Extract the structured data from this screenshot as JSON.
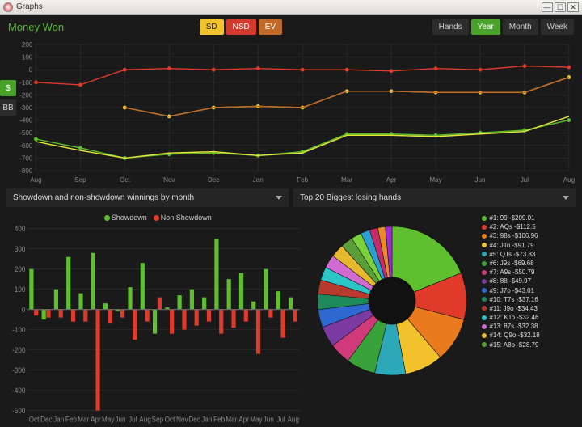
{
  "window": {
    "title": "Graphs"
  },
  "header": {
    "title": "Money Won",
    "series_buttons": [
      {
        "label": "SD",
        "bg": "#f2c22c",
        "fg": "#222"
      },
      {
        "label": "NSD",
        "bg": "#d13a2c",
        "fg": "#fff"
      },
      {
        "label": "EV",
        "bg": "#c06a2a",
        "fg": "#fff"
      }
    ],
    "range_buttons": [
      {
        "label": "Hands",
        "active": false
      },
      {
        "label": "Year",
        "active": true
      },
      {
        "label": "Month",
        "active": false
      },
      {
        "label": "Week",
        "active": false
      }
    ]
  },
  "side_tabs": [
    {
      "label": "$",
      "active": true
    },
    {
      "label": "BB",
      "active": false
    }
  ],
  "main_chart": {
    "type": "line",
    "background_color": "#1a1a1a",
    "grid_color": "#333333",
    "label_font_size": 8,
    "x_labels": [
      "Aug",
      "Sep",
      "Oct",
      "Nov",
      "Dec",
      "Jan",
      "Feb",
      "Mar",
      "Apr",
      "May",
      "Jun",
      "Jul",
      "Aug"
    ],
    "ylim": [
      -800,
      200
    ],
    "ytick_step": 100,
    "series": [
      {
        "name": "SD",
        "color": "#f2c22c",
        "marker": true,
        "values": [
          null,
          null,
          -300,
          -370,
          -300,
          -290,
          -300,
          -170,
          -170,
          -180,
          -180,
          -180,
          -60
        ]
      },
      {
        "name": "NSD",
        "color": "#e03a2a",
        "marker": true,
        "values": [
          -100,
          -120,
          0,
          10,
          0,
          10,
          0,
          0,
          -10,
          10,
          0,
          30,
          20
        ]
      },
      {
        "name": "EV",
        "color": "#c06a2a",
        "marker": false,
        "values": [
          null,
          null,
          -300,
          -370,
          -300,
          -290,
          -300,
          -170,
          -170,
          -180,
          -180,
          -180,
          -60
        ]
      },
      {
        "name": "Winnings",
        "color": "#5fbf2f",
        "marker": true,
        "values": [
          -550,
          -620,
          -700,
          -670,
          -660,
          -680,
          -650,
          -510,
          -510,
          -520,
          -500,
          -480,
          -400
        ]
      },
      {
        "name": "Winnings2",
        "color": "#e6e63a",
        "marker": false,
        "values": [
          -570,
          -640,
          -700,
          -660,
          -650,
          -680,
          -660,
          -520,
          -520,
          -530,
          -510,
          -490,
          -370
        ]
      }
    ]
  },
  "selectors": {
    "left": "Showdown and non-showdown winnings by month",
    "right": "Top 20 Biggest losing hands"
  },
  "bar_chart": {
    "type": "grouped-bar",
    "legend": [
      {
        "label": "Showdown",
        "color": "#5fbf2f"
      },
      {
        "label": "Non Showdown",
        "color": "#e03a2a"
      }
    ],
    "ylim": [
      -500,
      400
    ],
    "ytick_step": 100,
    "background_color": "#1a1a1a",
    "grid_color": "#333333",
    "label_font_size": 7,
    "x_labels": [
      "Oct",
      "Dec",
      "Jan",
      "Feb",
      "Mar",
      "Apr",
      "May",
      "Jun",
      "Jul",
      "Aug",
      "Sep",
      "Oct",
      "Nov",
      "Dec",
      "Jan",
      "Feb",
      "Mar",
      "Apr",
      "May",
      "Jun",
      "Jul",
      "Aug"
    ],
    "showdown": [
      200,
      -50,
      100,
      260,
      80,
      280,
      30,
      -10,
      110,
      230,
      -120,
      10,
      70,
      100,
      60,
      350,
      150,
      180,
      40,
      200,
      90,
      60
    ],
    "non_showdown": [
      -30,
      -40,
      -40,
      -60,
      -60,
      -500,
      -70,
      -40,
      -150,
      -60,
      60,
      -120,
      -100,
      -80,
      -60,
      -120,
      -90,
      -60,
      -220,
      -40,
      -140,
      -60
    ]
  },
  "pie_chart": {
    "type": "donut",
    "background_color": "#1a1a1a",
    "inner_radius_ratio": 0.32,
    "slice_colors": [
      "#5fbf2f",
      "#e03a2a",
      "#ea7a1e",
      "#f2c22c",
      "#2ca8b8",
      "#3aa23a",
      "#d13a7a",
      "#7a3aa2",
      "#2c6ad1",
      "#1e8a5a",
      "#b83a2c",
      "#2cc6c6",
      "#d16ad1",
      "#e6b82c",
      "#5a9e3a",
      "#7ad13a",
      "#2c9ed1",
      "#c62c6a",
      "#e68a2c",
      "#9e2cd1"
    ]
  },
  "legend_list": [
    {
      "color": "#5fbf2f",
      "label": "#1: 99 -$209.01"
    },
    {
      "color": "#e03a2a",
      "label": "#2: AQs -$112.5"
    },
    {
      "color": "#ea7a1e",
      "label": "#3: 98s -$106.96"
    },
    {
      "color": "#f2c22c",
      "label": "#4: JTo -$91.79"
    },
    {
      "color": "#2ca8b8",
      "label": "#5: QTs -$73.83"
    },
    {
      "color": "#3aa23a",
      "label": "#6: J9s -$69.68"
    },
    {
      "color": "#d13a7a",
      "label": "#7: A9s -$50.79"
    },
    {
      "color": "#7a3aa2",
      "label": "#8: 88 -$49.97"
    },
    {
      "color": "#2c6ad1",
      "label": "#9: J7o -$43.01"
    },
    {
      "color": "#1e8a5a",
      "label": "#10: T7s -$37.16"
    },
    {
      "color": "#b83a2c",
      "label": "#11: J9o -$34.43"
    },
    {
      "color": "#2cc6c6",
      "label": "#12: KTo -$32.46"
    },
    {
      "color": "#d16ad1",
      "label": "#13: 87s -$32.38"
    },
    {
      "color": "#e6b82c",
      "label": "#14: Q9o -$32.18"
    },
    {
      "color": "#5a9e3a",
      "label": "#15: A8o -$28.79"
    }
  ]
}
